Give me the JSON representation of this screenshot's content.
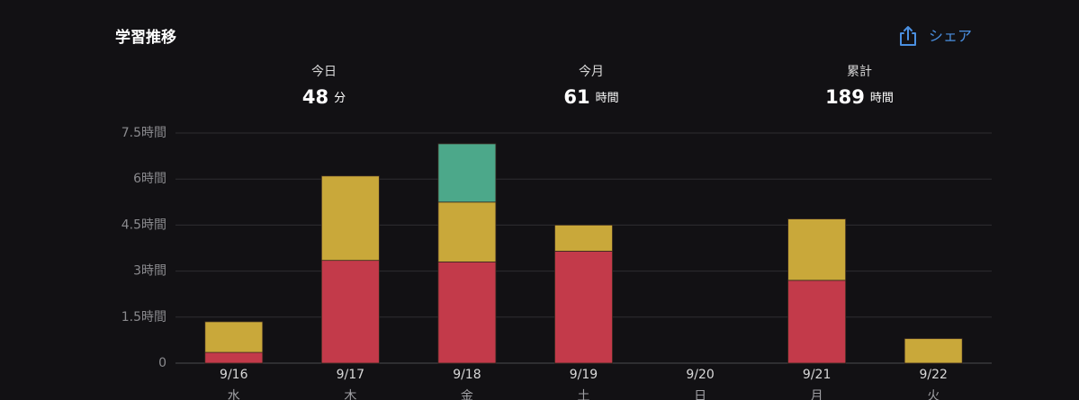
{
  "header": {
    "title": "学習推移",
    "share": "シェア"
  },
  "stats": [
    {
      "label": "今日",
      "value": 48,
      "unit": "分"
    },
    {
      "label": "今月",
      "value": 61,
      "unit": "時間"
    },
    {
      "label": "累計",
      "value": 189,
      "unit": "時間"
    }
  ],
  "chart_data": {
    "type": "bar",
    "stacked": true,
    "categories": [
      "9/16",
      "9/17",
      "9/18",
      "9/19",
      "9/20",
      "9/21",
      "9/22"
    ],
    "weekday_labels": [
      "水",
      "木",
      "金",
      "土",
      "日",
      "月",
      "火"
    ],
    "series": [
      {
        "color": "#c33a4a",
        "values": [
          0.35,
          3.35,
          3.3,
          3.65,
          0,
          2.7,
          0
        ]
      },
      {
        "color": "#c9a83a",
        "values": [
          1.0,
          2.75,
          1.95,
          0.85,
          0,
          2.0,
          0.8
        ]
      },
      {
        "color": "#4ca88a",
        "values": [
          0,
          0,
          1.9,
          0,
          0,
          0,
          0
        ]
      }
    ],
    "ylim": [
      0,
      7.5
    ],
    "yticks": [
      0,
      {
        "value": 1.5,
        "label": "1.5時間"
      },
      {
        "value": 3,
        "label": "3時間"
      },
      {
        "value": 4.5,
        "label": "4.5時間"
      },
      {
        "value": 6,
        "label": "6時間"
      },
      {
        "value": 7.5,
        "label": "7.5時間"
      }
    ],
    "grid": true
  }
}
